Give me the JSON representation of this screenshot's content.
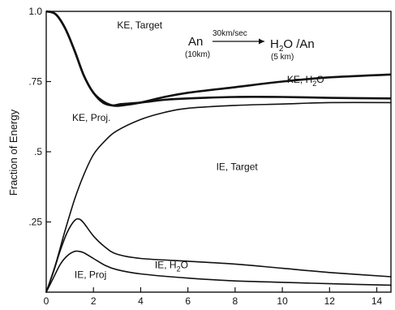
{
  "chart_data": {
    "type": "line",
    "ylabel": "Fraction of Energy",
    "xlabel": "",
    "xlim": [
      0,
      14.6
    ],
    "ylim": [
      0,
      1.0
    ],
    "x_ticks": [
      {
        "value": 0,
        "label": "0"
      },
      {
        "value": 2,
        "label": "2"
      },
      {
        "value": 4,
        "label": "4"
      },
      {
        "value": 6,
        "label": "6"
      },
      {
        "value": 8,
        "label": "8"
      },
      {
        "value": 10,
        "label": "10"
      },
      {
        "value": 12,
        "label": "12"
      },
      {
        "value": 14,
        "label": "14"
      }
    ],
    "y_ticks": [
      {
        "value": 0.25,
        "label": ".25"
      },
      {
        "value": 0.5,
        "label": ".5"
      },
      {
        "value": 0.75,
        "label": ".75"
      },
      {
        "value": 1.0,
        "label": "1.0"
      }
    ],
    "grid": false,
    "series": [
      {
        "x": [
          0,
          0.4,
          0.8,
          1.2,
          1.6,
          2.0,
          2.4,
          2.8,
          3.2,
          4,
          5,
          6,
          8,
          10,
          12,
          14.6
        ],
        "y": [
          1.0,
          0.99,
          0.94,
          0.86,
          0.77,
          0.71,
          0.68,
          0.665,
          0.665,
          0.675,
          0.695,
          0.71,
          0.73,
          0.75,
          0.765,
          0.775
        ]
      },
      {
        "x": [
          0,
          0.4,
          0.8,
          1.2,
          1.6,
          2.0,
          2.4,
          2.8,
          3.2,
          4,
          5,
          6,
          8,
          10,
          12,
          14.6
        ],
        "y": [
          1.0,
          0.99,
          0.94,
          0.86,
          0.77,
          0.71,
          0.675,
          0.665,
          0.67,
          0.675,
          0.685,
          0.69,
          0.695,
          0.695,
          0.692,
          0.69
        ]
      },
      {
        "x": [
          0,
          0.4,
          0.8,
          1.2,
          1.6,
          2.0,
          2.5,
          3,
          4,
          5,
          6,
          8,
          10,
          12,
          14.6
        ],
        "y": [
          0,
          0.1,
          0.22,
          0.33,
          0.42,
          0.49,
          0.54,
          0.575,
          0.615,
          0.64,
          0.655,
          0.665,
          0.67,
          0.675,
          0.675
        ]
      },
      {
        "x": [
          0,
          0.3,
          0.6,
          0.9,
          1.2,
          1.4,
          1.6,
          2.0,
          2.5,
          3,
          4,
          6,
          8,
          10,
          12,
          14.6
        ],
        "y": [
          0,
          0.07,
          0.15,
          0.215,
          0.255,
          0.26,
          0.245,
          0.2,
          0.16,
          0.135,
          0.12,
          0.11,
          0.1,
          0.085,
          0.07,
          0.055
        ]
      },
      {
        "x": [
          0,
          0.3,
          0.6,
          0.9,
          1.2,
          1.4,
          1.6,
          2.0,
          2.5,
          3,
          4,
          6,
          8,
          10,
          12,
          14.6
        ],
        "y": [
          0,
          0.05,
          0.1,
          0.13,
          0.145,
          0.145,
          0.14,
          0.12,
          0.095,
          0.08,
          0.065,
          0.05,
          0.04,
          0.035,
          0.03,
          0.025
        ]
      }
    ],
    "annotations": [
      {
        "text": "KE, Target",
        "x": 3.0,
        "y": 0.94
      },
      {
        "text": "KE, H",
        "sub": "2",
        "tail": "O",
        "x": 10.2,
        "y": 0.745
      },
      {
        "text": "KE, Proj.",
        "x": 1.1,
        "y": 0.61
      },
      {
        "text": "IE, Target",
        "x": 7.2,
        "y": 0.435
      },
      {
        "text": "IE, H",
        "sub": "2",
        "tail": "O",
        "x": 4.6,
        "y": 0.085
      },
      {
        "text": "IE,  Proj",
        "x": 1.2,
        "y": 0.05
      }
    ],
    "equation": {
      "left": "An",
      "left_sub": "(10km)",
      "arrow_label": "30km/sec",
      "right_h": "H",
      "right_sub": "2",
      "right_tail": "O /An",
      "right_note": "(5 km)"
    }
  }
}
